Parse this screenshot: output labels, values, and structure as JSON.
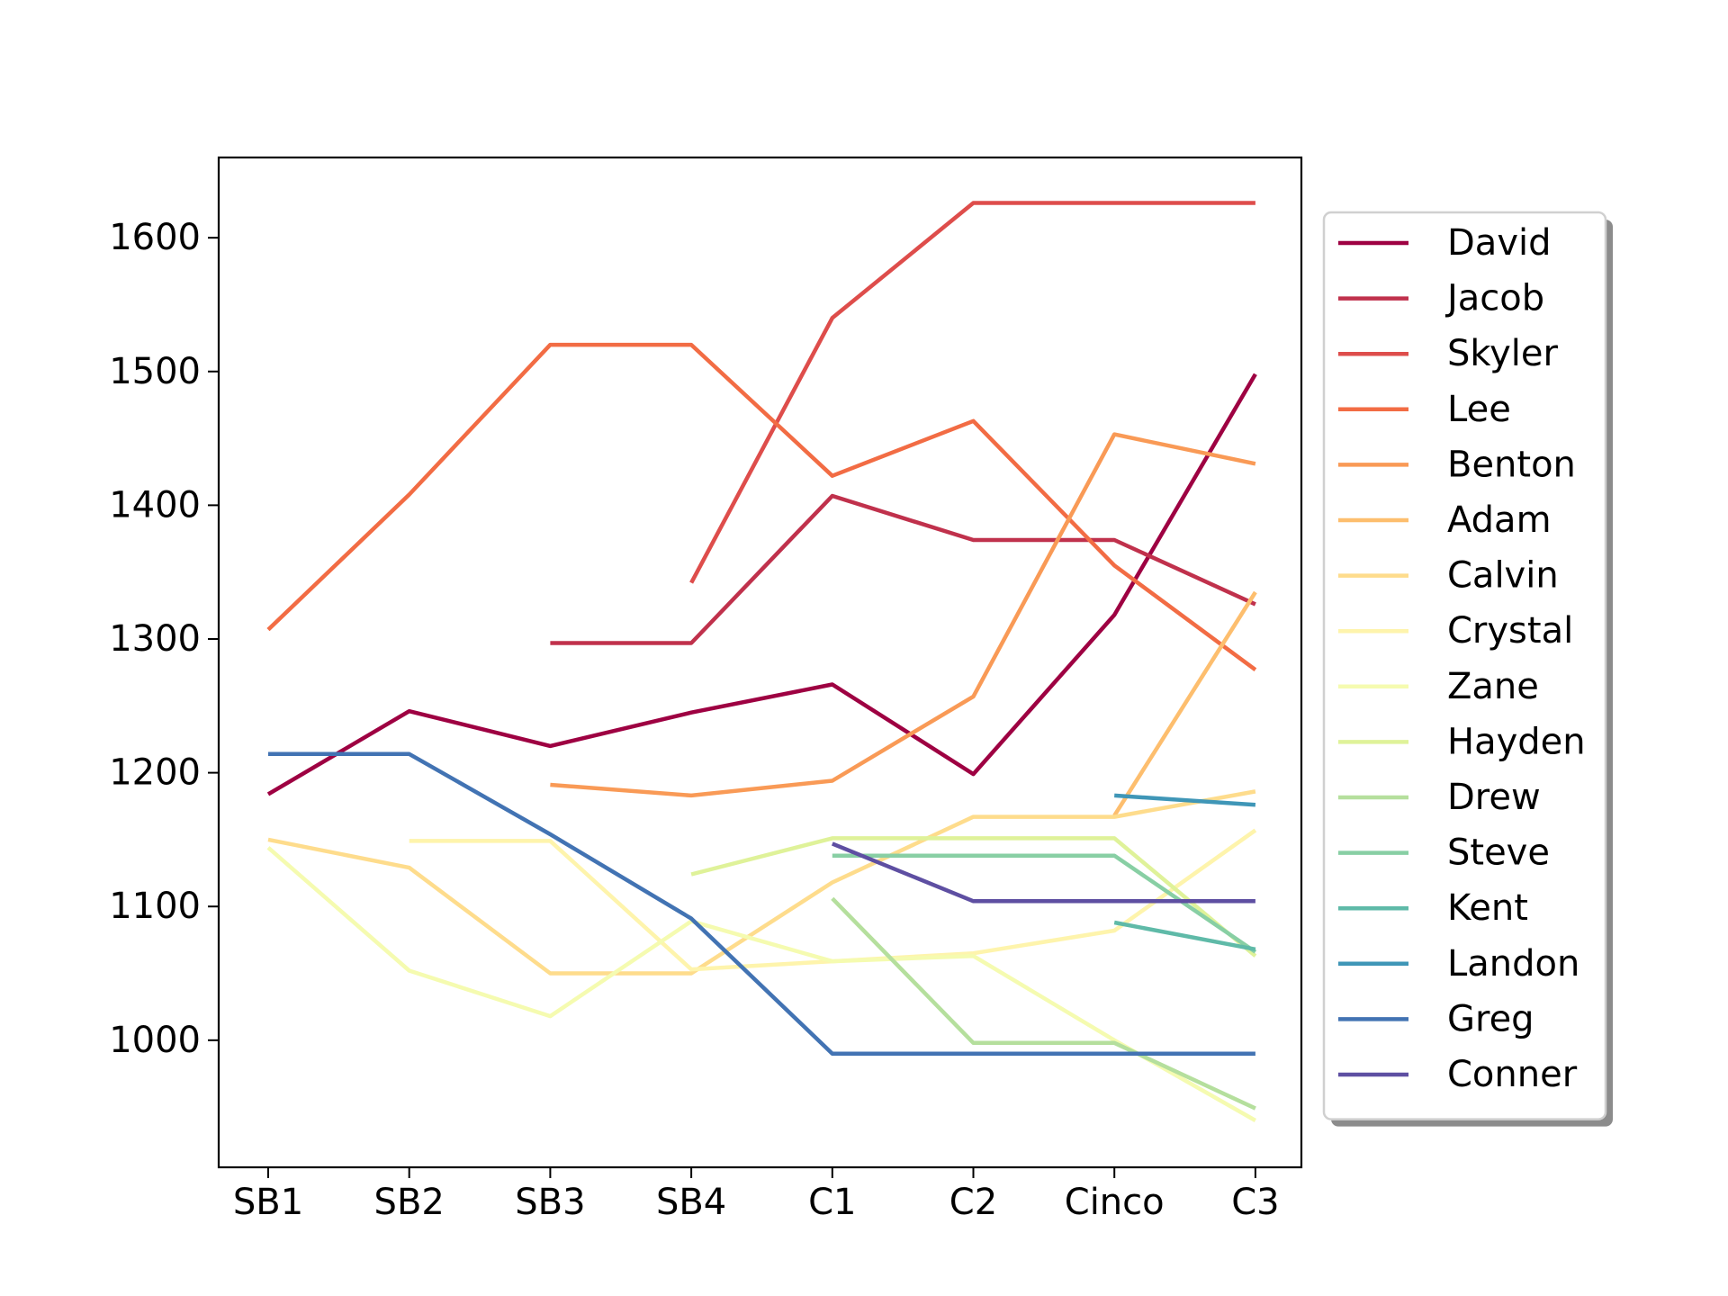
{
  "chart_data": {
    "type": "line",
    "title": "",
    "xlabel": "",
    "ylabel": "",
    "categories": [
      "SB1",
      "SB2",
      "SB3",
      "SB4",
      "C1",
      "C2",
      "Cinco",
      "C3"
    ],
    "yticks": [
      1000,
      1100,
      1200,
      1300,
      1400,
      1500,
      1600
    ],
    "ylim": [
      905,
      1660
    ],
    "grid": false,
    "legend_position": "center-right-outside",
    "series": [
      {
        "name": "David",
        "color": "#9e0142",
        "values": [
          1184,
          1246,
          1220,
          1245,
          1266,
          1199,
          1318,
          1498
        ]
      },
      {
        "name": "Jacob",
        "color": "#c0314c",
        "values": [
          null,
          null,
          1297,
          1297,
          1407,
          1374,
          1374,
          1326
        ]
      },
      {
        "name": "Skyler",
        "color": "#de4d4b",
        "values": [
          null,
          null,
          null,
          1342,
          1540,
          1626,
          1626,
          1626
        ]
      },
      {
        "name": "Lee",
        "color": "#f26c44",
        "values": [
          1307,
          1408,
          1520,
          1520,
          1422,
          1463,
          1355,
          1277
        ]
      },
      {
        "name": "Benton",
        "color": "#f99a56",
        "values": [
          null,
          null,
          1191,
          1183,
          1194,
          1257,
          1453,
          1431
        ]
      },
      {
        "name": "Adam",
        "color": "#fdbe6e",
        "values": [
          null,
          null,
          null,
          null,
          null,
          null,
          1168,
          1335
        ]
      },
      {
        "name": "Calvin",
        "color": "#fedc8c",
        "values": [
          1150,
          1129,
          1050,
          1050,
          1118,
          1167,
          1167,
          1186
        ]
      },
      {
        "name": "Crystal",
        "color": "#fef4ac",
        "values": [
          null,
          1149,
          1149,
          1053,
          1059,
          1065,
          1082,
          1157
        ]
      },
      {
        "name": "Zane",
        "color": "#f5fbb0",
        "values": [
          1144,
          1052,
          1018,
          1089,
          1059,
          1063,
          1000,
          940
        ]
      },
      {
        "name": "Hayden",
        "color": "#dff299",
        "values": [
          null,
          null,
          null,
          1124,
          1151,
          1151,
          1151,
          1063
        ]
      },
      {
        "name": "Drew",
        "color": "#b5df9d",
        "values": [
          null,
          null,
          null,
          null,
          1106,
          998,
          998,
          949
        ]
      },
      {
        "name": "Steve",
        "color": "#88cfa4",
        "values": [
          null,
          null,
          null,
          null,
          1138,
          1138,
          1138,
          1066
        ]
      },
      {
        "name": "Kent",
        "color": "#5fbaa8",
        "values": [
          null,
          null,
          null,
          null,
          null,
          null,
          1088,
          1068
        ]
      },
      {
        "name": "Landon",
        "color": "#3f96b7",
        "values": [
          null,
          null,
          null,
          null,
          null,
          null,
          1183,
          1176
        ]
      },
      {
        "name": "Greg",
        "color": "#4273b3",
        "values": [
          1214,
          1214,
          1154,
          1091,
          990,
          990,
          990,
          990
        ]
      },
      {
        "name": "Conner",
        "color": "#5e4fa2",
        "values": [
          null,
          null,
          null,
          null,
          1147,
          1104,
          1104,
          1104
        ]
      }
    ]
  }
}
